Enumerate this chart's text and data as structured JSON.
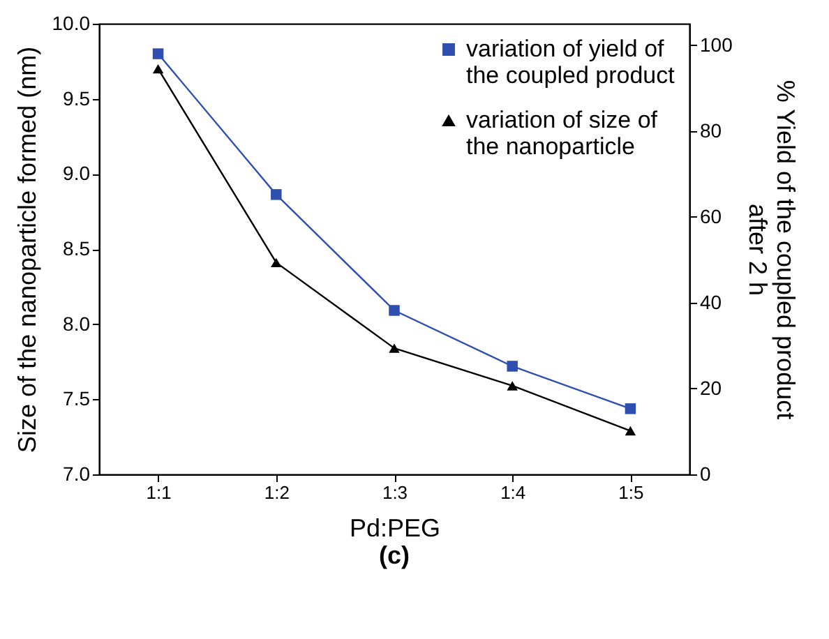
{
  "chart_data": {
    "type": "line",
    "categories": [
      "1:1",
      "1:2",
      "1:3",
      "1:4",
      "1:5"
    ],
    "xlabel": "Pd:PEG",
    "ylabel": "Size of the nanoparticle formed (nm)",
    "y2label": "% Yield of the coupled product\nafter 2 h",
    "ylim": [
      7.0,
      10.0
    ],
    "yticks": [
      {
        "value": 7,
        "label": "7.0"
      },
      7.5,
      {
        "value": 8,
        "label": "8.0"
      },
      8.5,
      {
        "value": 9,
        "label": "9.0"
      },
      9.5,
      {
        "value": 10,
        "label": "10.0"
      }
    ],
    "y2lim": [
      0,
      105
    ],
    "y2ticks": [
      0,
      20,
      40,
      60,
      80,
      100
    ],
    "series": [
      {
        "name": "variation of yield of\nthe coupled product",
        "color": "#2f4fb0",
        "axis": "y2",
        "marker": "square",
        "values": [
          98,
          65.2,
          38.2,
          25.2,
          15.3
        ]
      },
      {
        "name": "variation of size of\nthe nanoparticle",
        "color": "#000000",
        "marker": "triangle",
        "values": [
          9.7,
          8.41,
          7.84,
          7.59,
          7.29
        ]
      }
    ],
    "legend": "top right",
    "grid": false,
    "annotations": [
      "(c)"
    ]
  }
}
